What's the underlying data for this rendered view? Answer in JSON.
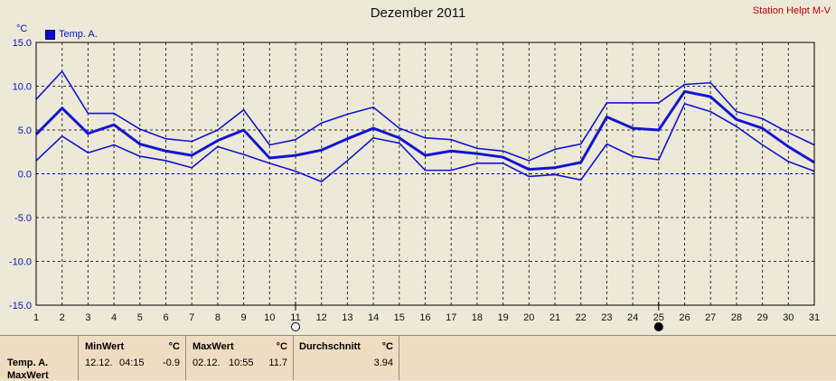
{
  "title": "Dezember 2011",
  "station": "Station Helpt M-V",
  "y_unit": "°C",
  "legend_label": "Temp. A.",
  "colors": {
    "line": "#1414d2",
    "zero": "#0000b0",
    "grid": "#333333",
    "bg": "#ece9d8",
    "panel": "#f0dcc0"
  },
  "chart_data": {
    "type": "line",
    "title": "Dezember 2011",
    "x": [
      1,
      2,
      3,
      4,
      5,
      6,
      7,
      8,
      9,
      10,
      11,
      12,
      13,
      14,
      15,
      16,
      17,
      18,
      19,
      20,
      21,
      22,
      23,
      24,
      25,
      26,
      27,
      28,
      29,
      30,
      31
    ],
    "ylim": [
      -15,
      15
    ],
    "yticks": [
      "15.0",
      "10.0",
      "5.0",
      "0.0",
      "-5.0",
      "-10.0",
      "-15.0"
    ],
    "ytick_values": [
      15,
      10,
      5,
      0,
      -5,
      -10,
      -15
    ],
    "grid": true,
    "series": [
      {
        "name": "Temp. A.",
        "role": "max",
        "values": [
          8.5,
          11.7,
          6.9,
          6.9,
          5.1,
          4.0,
          3.7,
          5.0,
          7.3,
          3.3,
          3.9,
          5.8,
          6.8,
          7.6,
          5.2,
          4.1,
          3.9,
          2.9,
          2.6,
          1.5,
          2.8,
          3.4,
          8.1,
          8.1,
          8.1,
          10.2,
          10.4,
          7.1,
          6.3,
          4.7,
          3.3
        ]
      },
      {
        "name": "Temp. A.",
        "role": "mean",
        "values": [
          4.5,
          7.5,
          4.6,
          5.6,
          3.4,
          2.6,
          2.1,
          3.8,
          5.0,
          1.8,
          2.1,
          2.7,
          4.0,
          5.2,
          4.1,
          2.1,
          2.6,
          2.3,
          1.9,
          0.5,
          0.7,
          1.3,
          6.5,
          5.2,
          5.0,
          9.4,
          8.8,
          6.2,
          5.2,
          3.1,
          1.3
        ]
      },
      {
        "name": "Temp. A.",
        "role": "min",
        "values": [
          1.5,
          4.3,
          2.4,
          3.3,
          2.0,
          1.5,
          0.7,
          3.1,
          2.2,
          1.2,
          0.3,
          -0.9,
          1.5,
          4.1,
          3.5,
          0.4,
          0.4,
          1.2,
          1.2,
          -0.3,
          -0.1,
          -0.7,
          3.4,
          2.0,
          1.6,
          8.0,
          7.1,
          5.4,
          3.3,
          1.4,
          0.3
        ]
      }
    ],
    "markers": [
      {
        "x": 11,
        "type": "open-circle"
      },
      {
        "x": 25,
        "type": "filled-circle"
      }
    ]
  },
  "summary": {
    "row_label": "Temp. A.",
    "row_label_2": "MaxWert",
    "min": {
      "header": "MinWert",
      "unit": "°C",
      "date": "12.12.",
      "time": "04:15",
      "value": "-0.9"
    },
    "max": {
      "header": "MaxWert",
      "unit": "°C",
      "date": "02.12.",
      "time": "10:55",
      "value": "11.7"
    },
    "avg": {
      "header": "Durchschnitt",
      "unit": "°C",
      "value": "3.94"
    }
  }
}
